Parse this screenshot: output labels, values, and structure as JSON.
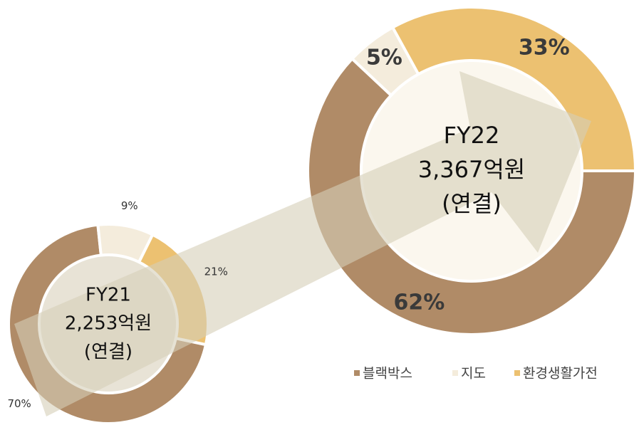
{
  "chart_data": [
    {
      "type": "donut",
      "title_lines": [
        "FY21",
        "2,253억원",
        "(연결)"
      ],
      "categories": [
        "블랙박스",
        "지도",
        "환경생활가전"
      ],
      "values": [
        70,
        9,
        21
      ],
      "value_labels": [
        "70%",
        "9%",
        "21%"
      ],
      "colors": [
        "#b08b67",
        "#f4ecdc",
        "#ecc171"
      ]
    },
    {
      "type": "donut",
      "title_lines": [
        "FY22",
        "3,367억원",
        "(연결)"
      ],
      "categories": [
        "블랙박스",
        "지도",
        "환경생활가전"
      ],
      "values": [
        62,
        5,
        33
      ],
      "value_labels": [
        "62%",
        "5%",
        "33%"
      ],
      "colors": [
        "#b08b67",
        "#f4ecdc",
        "#ecc171"
      ]
    }
  ]
}
